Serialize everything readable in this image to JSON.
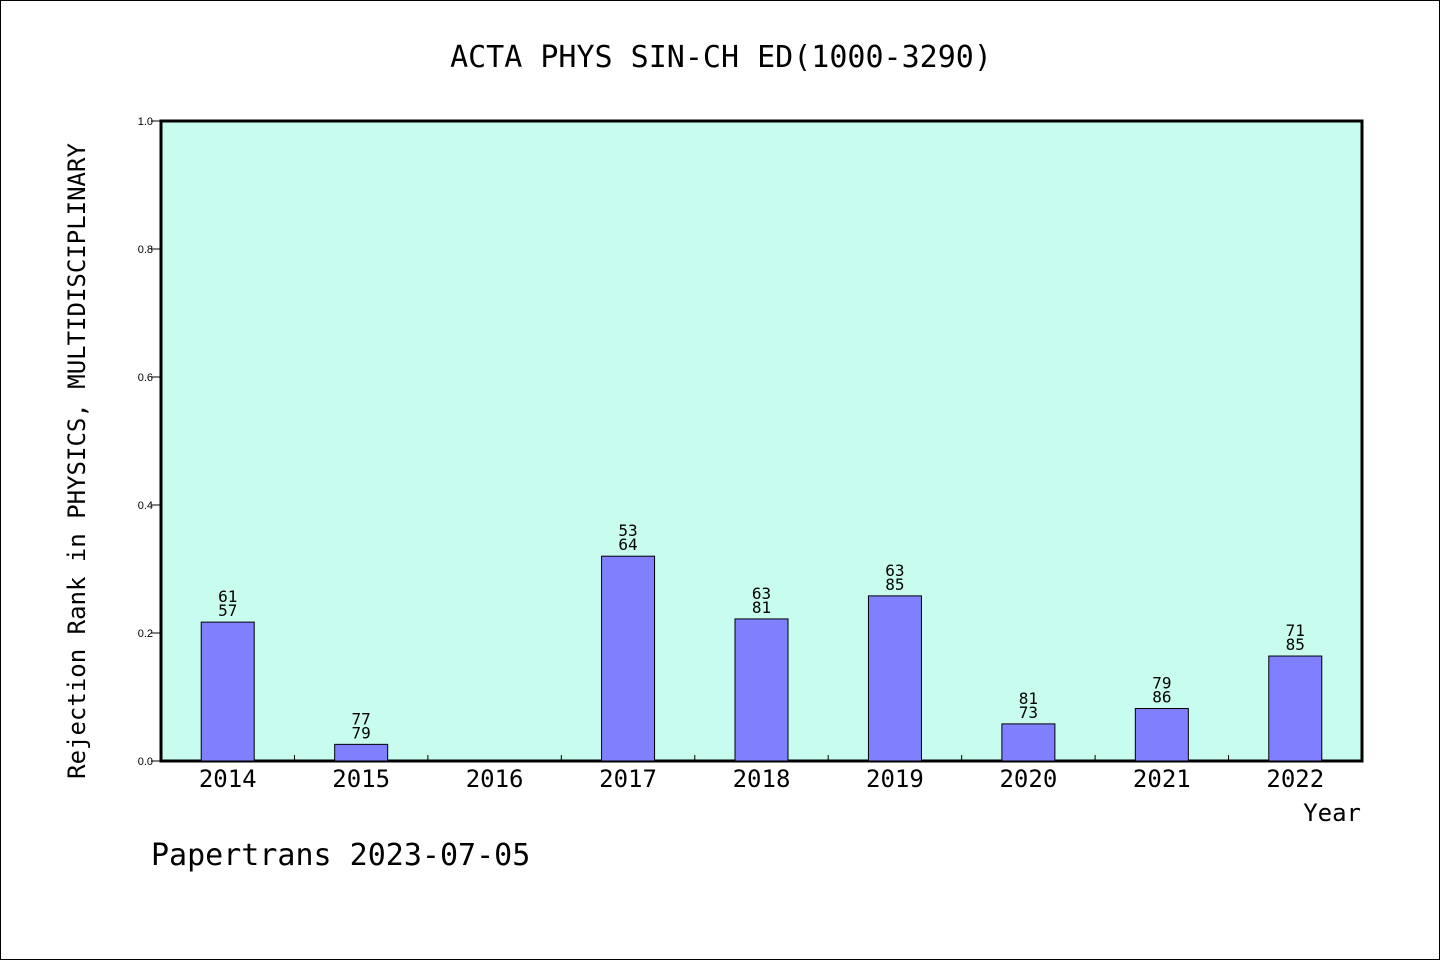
{
  "chart_data": {
    "type": "bar",
    "title": "ACTA PHYS SIN-CH ED(1000-3290)",
    "xlabel": "Year",
    "ylabel": "Rejection Rank in PHYSICS, MULTIDISCIPLINARY",
    "footer": "Papertrans 2023-07-05",
    "categories": [
      "2014",
      "2015",
      "2016",
      "2017",
      "2018",
      "2019",
      "2020",
      "2021",
      "2022"
    ],
    "values": [
      0.217,
      0.026,
      null,
      0.32,
      0.222,
      0.258,
      0.058,
      0.082,
      0.164
    ],
    "bar_labels": [
      [
        "61",
        "57"
      ],
      [
        "77",
        "79"
      ],
      null,
      [
        "53",
        "64"
      ],
      [
        "63",
        "81"
      ],
      [
        "63",
        "85"
      ],
      [
        "81",
        "73"
      ],
      [
        "79",
        "86"
      ],
      [
        "71",
        "85"
      ]
    ],
    "ylim": [
      0,
      1.0
    ],
    "yticks": [
      "0.0",
      "0.2",
      "0.4",
      "0.6",
      "0.8",
      "1.0"
    ],
    "colors": {
      "plot_background": "#c8fcee",
      "bar_fill": "#8080ff",
      "bar_stroke": "#000000"
    },
    "grid": false,
    "legend": "none"
  }
}
